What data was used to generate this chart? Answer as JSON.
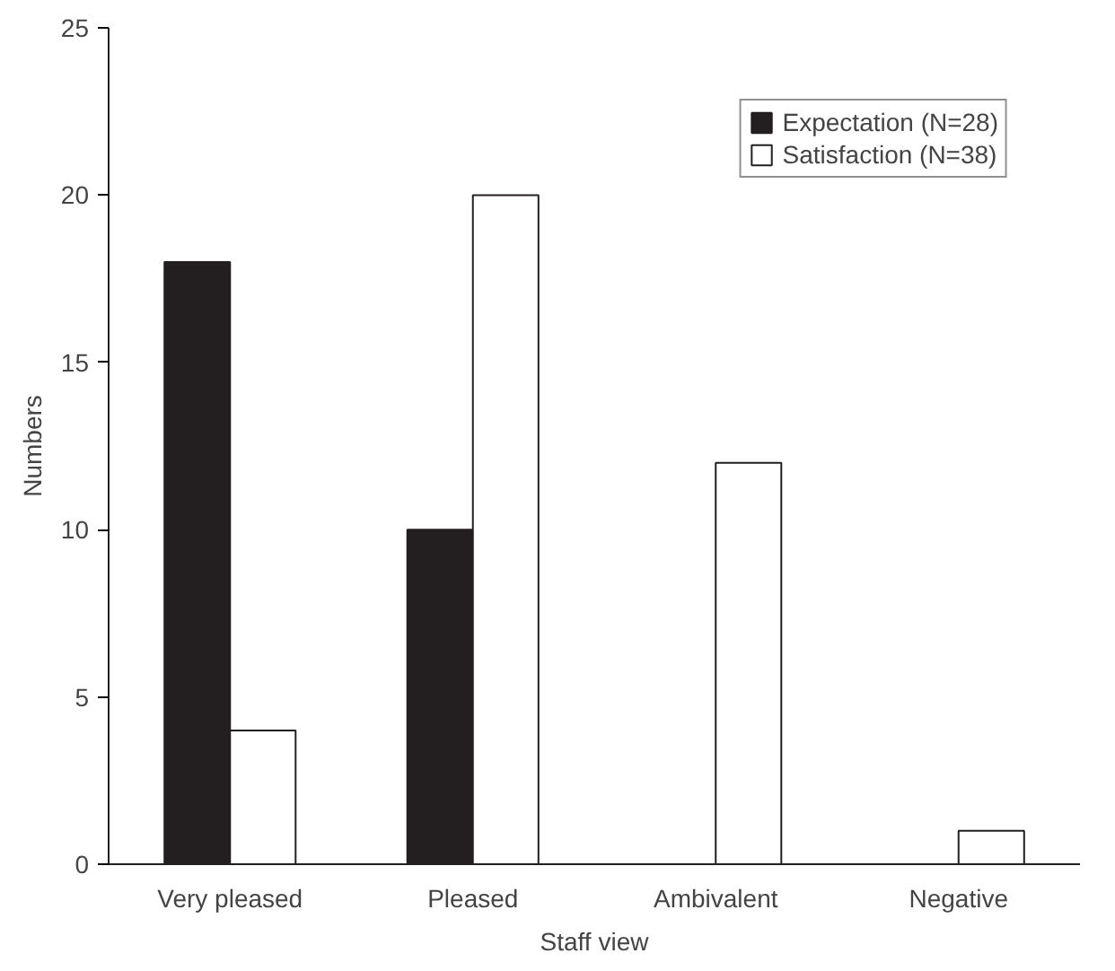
{
  "chart_data": {
    "type": "bar",
    "xlabel": "Staff view",
    "ylabel": "Numbers",
    "categories": [
      "Very pleased",
      "Pleased",
      "Ambivalent",
      "Negative"
    ],
    "series": [
      {
        "name": "Expectation (N=28)",
        "color": "#231f20",
        "values": [
          18,
          10,
          0,
          0
        ]
      },
      {
        "name": "Satisfaction (N=38)",
        "color": "#ffffff",
        "values": [
          4,
          20,
          12,
          1
        ]
      }
    ],
    "ylim": [
      0,
      25
    ],
    "yticks": [
      0,
      5,
      10,
      15,
      20,
      25
    ],
    "grid": false,
    "legend": "top right"
  }
}
